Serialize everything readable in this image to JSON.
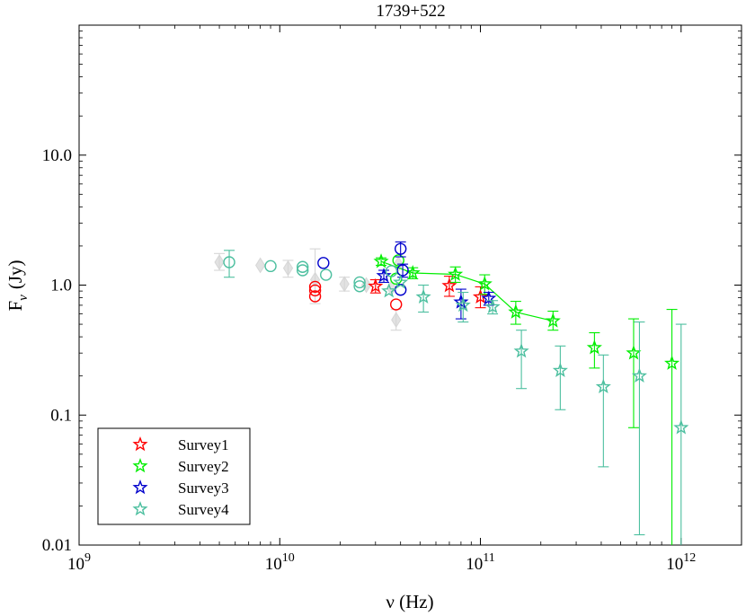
{
  "chart_data": {
    "type": "scatter",
    "title": "1739+522",
    "xlabel": "ν (Hz)",
    "ylabel_main": "F",
    "ylabel_sub": "ν",
    "ylabel_unit": "(Jy)",
    "x_scale": "log",
    "y_scale": "log",
    "xlim": [
      1000000000.0,
      2000000000000.0
    ],
    "ylim": [
      0.01,
      100
    ],
    "x_ticks": [
      {
        "value": 1000000000.0,
        "base": "10",
        "exp": "9"
      },
      {
        "value": 10000000000.0,
        "base": "10",
        "exp": "10"
      },
      {
        "value": 100000000000.0,
        "base": "10",
        "exp": "11"
      },
      {
        "value": 1000000000000.0,
        "base": "10",
        "exp": "12"
      }
    ],
    "y_ticks": [
      {
        "value": 0.01,
        "label": "0.01"
      },
      {
        "value": 0.1,
        "label": "0.1"
      },
      {
        "value": 1,
        "label": "1.0"
      },
      {
        "value": 10,
        "label": "10.0"
      }
    ],
    "legend_position": "bottom-left",
    "series": [
      {
        "name": "Survey1",
        "color": "#ff0000",
        "show_in_legend": true,
        "points": [
          {
            "x": 15000000000.0,
            "y": 0.97,
            "marker": "circle"
          },
          {
            "x": 15000000000.0,
            "y": 0.91,
            "marker": "circle"
          },
          {
            "x": 15000000000.0,
            "y": 0.82,
            "marker": "circle"
          },
          {
            "x": 38000000000.0,
            "y": 0.71,
            "marker": "circle"
          },
          {
            "x": 30000000000.0,
            "y": 0.98,
            "yerr": [
              0.87,
              1.1
            ],
            "marker": "star"
          },
          {
            "x": 70000000000.0,
            "y": 0.99,
            "yerr": [
              0.82,
              1.17
            ],
            "marker": "star"
          },
          {
            "x": 100000000000.0,
            "y": 0.81,
            "yerr": [
              0.67,
              0.97
            ],
            "marker": "star"
          }
        ]
      },
      {
        "name": "Survey2",
        "color": "#00ee00",
        "show_in_legend": true,
        "line_through_stars": true,
        "points": [
          {
            "x": 39000000000.0,
            "y": 1.55,
            "marker": "circle"
          },
          {
            "x": 38000000000.0,
            "y": 1.12,
            "marker": "circle"
          },
          {
            "x": 32000000000.0,
            "y": 1.52,
            "yerr": [
              1.42,
              1.62
            ],
            "marker": "star"
          },
          {
            "x": 46000000000.0,
            "y": 1.24,
            "yerr": [
              1.12,
              1.36
            ],
            "marker": "star"
          },
          {
            "x": 75000000000.0,
            "y": 1.21,
            "yerr": [
              1.05,
              1.38
            ],
            "marker": "star"
          },
          {
            "x": 105000000000.0,
            "y": 1.02,
            "yerr": [
              0.85,
              1.2
            ],
            "marker": "star"
          },
          {
            "x": 150000000000.0,
            "y": 0.62,
            "yerr": [
              0.5,
              0.75
            ],
            "marker": "star"
          },
          {
            "x": 230000000000.0,
            "y": 0.53,
            "yerr": [
              0.45,
              0.63
            ],
            "marker": "star"
          },
          {
            "x": 370000000000.0,
            "y": 0.33,
            "yerr": [
              0.23,
              0.43
            ],
            "marker": "star"
          },
          {
            "x": 580000000000.0,
            "y": 0.3,
            "yerr": [
              0.08,
              0.55
            ],
            "marker": "star"
          },
          {
            "x": 900000000000.0,
            "y": 0.25,
            "yerr": [
              0.005,
              0.65
            ],
            "marker": "star"
          }
        ]
      },
      {
        "name": "Survey3",
        "color": "#0000cc",
        "show_in_legend": true,
        "points": [
          {
            "x": 16500000000.0,
            "y": 1.48,
            "marker": "circle"
          },
          {
            "x": 40000000000.0,
            "y": 1.9,
            "yerr": [
              1.65,
              2.15
            ],
            "marker": "circle"
          },
          {
            "x": 41000000000.0,
            "y": 1.3,
            "yerr": [
              1.15,
              1.45
            ],
            "marker": "circle"
          },
          {
            "x": 40000000000.0,
            "y": 0.92,
            "marker": "circle"
          },
          {
            "x": 33000000000.0,
            "y": 1.18,
            "yerr": [
              1.05,
              1.3
            ],
            "marker": "star"
          },
          {
            "x": 80000000000.0,
            "y": 0.74,
            "yerr": [
              0.55,
              0.93
            ],
            "marker": "star"
          },
          {
            "x": 110000000000.0,
            "y": 0.79,
            "yerr": [
              0.7,
              0.88
            ],
            "marker": "star"
          }
        ]
      },
      {
        "name": "Survey4",
        "color": "#4cbf9f",
        "show_in_legend": true,
        "points": [
          {
            "x": 5600000000.0,
            "y": 1.5,
            "yerr": [
              1.15,
              1.85
            ],
            "marker": "circle"
          },
          {
            "x": 9000000000.0,
            "y": 1.4,
            "marker": "circle"
          },
          {
            "x": 13000000000.0,
            "y": 1.38,
            "marker": "circle"
          },
          {
            "x": 13000000000.0,
            "y": 1.3,
            "marker": "circle"
          },
          {
            "x": 17000000000.0,
            "y": 1.2,
            "marker": "circle"
          },
          {
            "x": 25000000000.0,
            "y": 1.05,
            "marker": "circle"
          },
          {
            "x": 25000000000.0,
            "y": 0.98,
            "marker": "circle"
          },
          {
            "x": 36000000000.0,
            "y": 1.28,
            "marker": "circle"
          },
          {
            "x": 35000000000.0,
            "y": 0.9,
            "marker": "star"
          },
          {
            "x": 40000000000.0,
            "y": 1.05,
            "marker": "star"
          },
          {
            "x": 52000000000.0,
            "y": 0.81,
            "yerr": [
              0.62,
              1.0
            ],
            "marker": "star"
          },
          {
            "x": 82000000000.0,
            "y": 0.7,
            "yerr": [
              0.52,
              0.88
            ],
            "marker": "star"
          },
          {
            "x": 115000000000.0,
            "y": 0.68,
            "yerr": [
              0.6,
              0.76
            ],
            "marker": "star"
          },
          {
            "x": 160000000000.0,
            "y": 0.31,
            "yerr": [
              0.16,
              0.45
            ],
            "marker": "star"
          },
          {
            "x": 250000000000.0,
            "y": 0.22,
            "yerr": [
              0.11,
              0.34
            ],
            "marker": "star"
          },
          {
            "x": 410000000000.0,
            "y": 0.165,
            "yerr": [
              0.04,
              0.29
            ],
            "marker": "star"
          },
          {
            "x": 620000000000.0,
            "y": 0.2,
            "yerr": [
              0.012,
              0.52
            ],
            "marker": "star"
          },
          {
            "x": 1000000000000.0,
            "y": 0.08,
            "yerr": [
              0.005,
              0.5
            ],
            "marker": "star"
          }
        ]
      },
      {
        "name": "archive",
        "color": "#d6d6d6",
        "show_in_legend": false,
        "points": [
          {
            "x": 5000000000.0,
            "y": 1.5,
            "yerr": [
              1.3,
              1.75
            ],
            "marker": "diamond"
          },
          {
            "x": 8000000000.0,
            "y": 1.42,
            "marker": "diamond"
          },
          {
            "x": 11000000000.0,
            "y": 1.35,
            "yerr": [
              1.15,
              1.55
            ],
            "marker": "diamond"
          },
          {
            "x": 15000000000.0,
            "y": 1.1,
            "yerr": [
              0.72,
              1.9
            ],
            "marker": "diamond"
          },
          {
            "x": 21000000000.0,
            "y": 1.02,
            "yerr": [
              0.9,
              1.15
            ],
            "marker": "diamond"
          },
          {
            "x": 27000000000.0,
            "y": 1.0,
            "marker": "diamond"
          },
          {
            "x": 38000000000.0,
            "y": 0.54,
            "yerr": [
              0.45,
              0.65
            ],
            "marker": "diamond"
          },
          {
            "x": 39000000000.0,
            "y": 1.45,
            "marker": "diamond"
          },
          {
            "x": 36000000000.0,
            "y": 0.95,
            "marker": "diamond"
          }
        ]
      }
    ]
  },
  "colors": {
    "axis": "#000000",
    "legend_border": "#000000",
    "background": "#ffffff"
  }
}
